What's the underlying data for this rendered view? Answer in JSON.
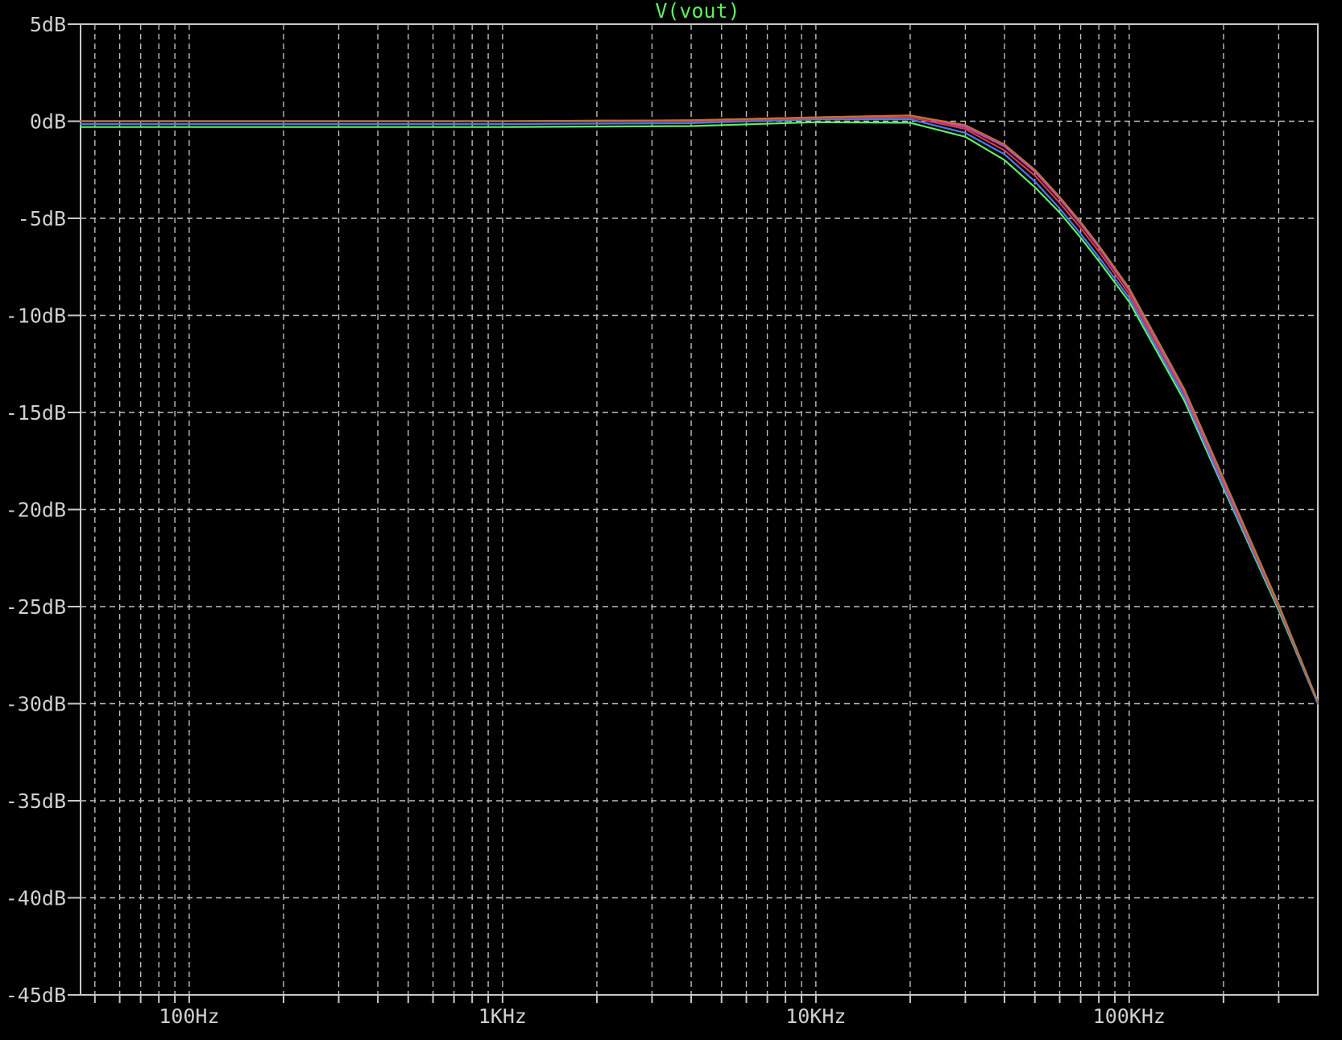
{
  "chart_data": {
    "type": "line",
    "title": "V(vout)",
    "title_color": "#5df25d",
    "background_color": "#000000",
    "grid_color": "#bdbdbd",
    "axis_color": "#c8c8c8",
    "grid": true,
    "x_scale": "log",
    "xlim": [
      45,
      400000
    ],
    "ylim": [
      -45,
      5
    ],
    "x_ticks": [
      {
        "value": 100,
        "label": "100Hz"
      },
      {
        "value": 1000,
        "label": "1KHz"
      },
      {
        "value": 10000,
        "label": "10KHz"
      },
      {
        "value": 100000,
        "label": "100KHz"
      }
    ],
    "y_ticks": [
      {
        "value": 5,
        "label": "5dB"
      },
      {
        "value": 0,
        "label": "0dB"
      },
      {
        "value": -5,
        "label": "-5dB"
      },
      {
        "value": -10,
        "label": "-10dB"
      },
      {
        "value": -15,
        "label": "-15dB"
      },
      {
        "value": -20,
        "label": "-20dB"
      },
      {
        "value": -25,
        "label": "-25dB"
      },
      {
        "value": -30,
        "label": "-30dB"
      },
      {
        "value": -35,
        "label": "-35dB"
      },
      {
        "value": -40,
        "label": "-40dB"
      },
      {
        "value": -45,
        "label": "-45dB"
      }
    ],
    "x": [
      45,
      100,
      1000,
      4000,
      10000,
      20000,
      30000,
      40000,
      50000,
      60000,
      70000,
      80000,
      100000,
      150000,
      200000,
      300000,
      400000
    ],
    "series": [
      {
        "color": "#5df25d",
        "values": [
          -0.3,
          -0.3,
          -0.3,
          -0.25,
          -0.05,
          -0.08,
          -0.8,
          -2.0,
          -3.4,
          -4.7,
          -6.0,
          -7.2,
          -9.3,
          -14.4,
          -18.9,
          -25.2,
          -30.0
        ]
      },
      {
        "color": "#4a78ff",
        "values": [
          -0.15,
          -0.15,
          -0.15,
          -0.1,
          0.1,
          0.1,
          -0.6,
          -1.7,
          -3.1,
          -4.5,
          -5.8,
          -7.0,
          -9.1,
          -14.2,
          -18.8,
          -25.1,
          -30.0
        ]
      },
      {
        "color": "#e03a3a",
        "values": [
          0.0,
          0.0,
          0.0,
          0.0,
          0.15,
          0.2,
          -0.4,
          -1.5,
          -2.8,
          -4.2,
          -5.5,
          -6.7,
          -8.9,
          -14.0,
          -18.6,
          -25.0,
          -29.9
        ]
      },
      {
        "color": "#d040d0",
        "values": [
          0.0,
          0.0,
          0.0,
          0.05,
          0.2,
          0.3,
          -0.3,
          -1.3,
          -2.6,
          -4.0,
          -5.3,
          -6.5,
          -8.7,
          -13.9,
          -18.5,
          -24.9,
          -29.9
        ]
      },
      {
        "color": "#b07830",
        "values": [
          0.0,
          0.0,
          0.0,
          0.05,
          0.2,
          0.3,
          -0.2,
          -1.2,
          -2.5,
          -3.9,
          -5.2,
          -6.4,
          -8.6,
          -13.8,
          -18.4,
          -24.9,
          -29.9
        ]
      }
    ]
  }
}
